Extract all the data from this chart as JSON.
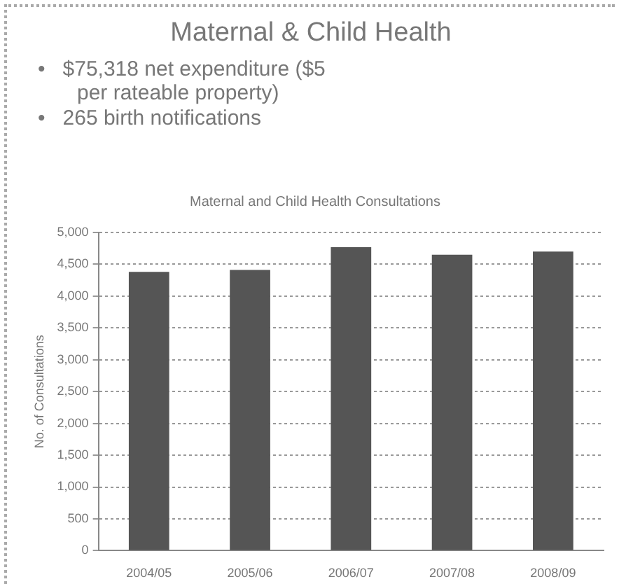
{
  "chart_data": {
    "type": "bar",
    "title": "Maternal & Child Health",
    "subtitle": "Maternal and Child Health Consultations",
    "ylabel": "No. of Consultations",
    "annotations": [
      "•   $75,318 net expenditure ($5 per rateable property)",
      "•   265 birth notifications"
    ],
    "categories": [
      "2004/05",
      "2005/06",
      "2006/07",
      "2007/08",
      "2008/09"
    ],
    "values": [
      4380,
      4410,
      4770,
      4650,
      4700
    ],
    "color": "#555555",
    "ylim": [
      0,
      5000
    ],
    "yticks": [
      0,
      {
        "value": 500,
        "label": "500"
      },
      {
        "value": 1000,
        "label": "1,000"
      },
      {
        "value": 1500,
        "label": "1,500"
      },
      {
        "value": 2000,
        "label": "2,000"
      },
      {
        "value": 2500,
        "label": "2,500"
      },
      {
        "value": 3000,
        "label": "3,000"
      },
      {
        "value": 3500,
        "label": "3,500"
      },
      {
        "value": 4000,
        "label": "4,000"
      },
      {
        "value": 4500,
        "label": "4,500"
      },
      {
        "value": 5000,
        "label": "5,000"
      }
    ],
    "grid": "y",
    "legend": false
  }
}
